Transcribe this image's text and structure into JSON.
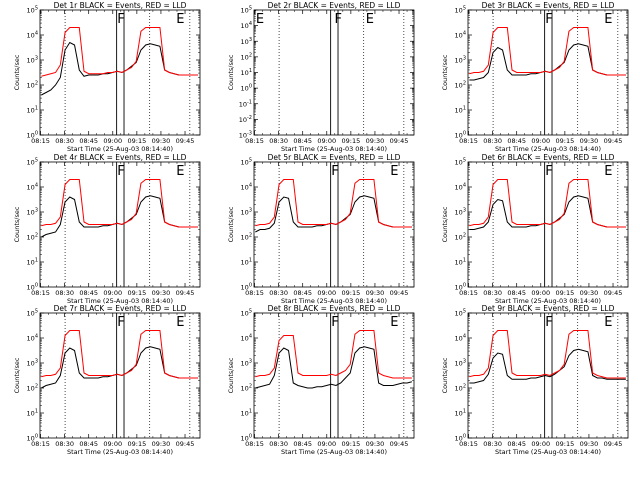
{
  "chart_data": {
    "type": "line",
    "x_ticks": [
      "08:15",
      "08:30",
      "08:45",
      "09:00",
      "09:15",
      "09:30",
      "09:45"
    ],
    "x_range": [
      "08:14:40",
      "09:54:00"
    ],
    "xlabel": "Start Time (25-Aug-03 08:14:40)",
    "ylabel": "Counts/sec",
    "y_scale": "log",
    "y_ticks": [
      "10^0",
      "10^1",
      "10^2",
      "10^3",
      "10^4",
      "10^5"
    ],
    "y_tick_values": [
      0,
      1,
      2,
      3,
      4,
      5
    ],
    "dotted_times_min": [
      15.3,
      68.0,
      93.0
    ],
    "solid_times_min": [
      47.4,
      52.0
    ],
    "panels": [
      {
        "title": "Det 1r BLACK = Events, RED = LLD",
        "ylim_log10": [
          0,
          5
        ],
        "markers": [
          {
            "t": 47.8,
            "label": "F"
          },
          {
            "t": 84.5,
            "label": "E"
          }
        ],
        "series": [
          {
            "name": "BLACK",
            "color": "#000000",
            "values": [
              1.6,
              1.7,
              1.8,
              2.0,
              2.3,
              3.4,
              3.7,
              3.6,
              2.6,
              2.35,
              2.4,
              2.4,
              2.4,
              2.45,
              2.45,
              2.5,
              2.55,
              2.5,
              2.6,
              2.75,
              2.9,
              3.4,
              3.6,
              3.65,
              3.6,
              3.55,
              2.6,
              2.5,
              2.45,
              2.4,
              2.4,
              2.4,
              2.4,
              2.4
            ]
          },
          {
            "name": "RED",
            "color": "#ff0000",
            "values": [
              2.35,
              2.4,
              2.45,
              2.5,
              2.8,
              4.1,
              4.3,
              4.3,
              4.3,
              2.55,
              2.45,
              2.45,
              2.45,
              2.45,
              2.5,
              2.5,
              2.55,
              2.5,
              2.6,
              2.7,
              2.95,
              4.15,
              4.3,
              4.3,
              4.3,
              4.3,
              2.6,
              2.5,
              2.45,
              2.4,
              2.4,
              2.4,
              2.4,
              2.4
            ]
          }
        ]
      },
      {
        "title": "Det 2r BLACK = Events, RED = LLD",
        "ylim_log10": [
          -3,
          5
        ],
        "y_ticks": [
          "10^-3",
          "10^-2",
          "10^-1",
          "10^0",
          "10^1",
          "10^2",
          "10^3",
          "10^4",
          "10^5"
        ],
        "y_tick_values": [
          -3,
          -2,
          -1,
          0,
          1,
          2,
          3,
          4,
          5
        ],
        "markers": [
          {
            "t": 0.8,
            "label": "E"
          },
          {
            "t": 49.8,
            "label": "F"
          },
          {
            "t": 69.3,
            "label": "E"
          }
        ],
        "series": []
      },
      {
        "title": "Det 3r BLACK = Events, RED = LLD",
        "ylim_log10": [
          0,
          5
        ],
        "markers": [
          {
            "t": 47.8,
            "label": "F"
          },
          {
            "t": 84.5,
            "label": "E"
          }
        ],
        "series": [
          {
            "name": "BLACK",
            "color": "#000000",
            "values": [
              2.2,
              2.2,
              2.25,
              2.3,
              2.5,
              3.3,
              3.5,
              3.4,
              2.6,
              2.4,
              2.4,
              2.4,
              2.4,
              2.45,
              2.45,
              2.5,
              2.55,
              2.5,
              2.6,
              2.75,
              2.9,
              3.4,
              3.6,
              3.65,
              3.6,
              3.55,
              2.6,
              2.5,
              2.45,
              2.4,
              2.4,
              2.4,
              2.4,
              2.4
            ]
          },
          {
            "name": "RED",
            "color": "#ff0000",
            "values": [
              2.45,
              2.5,
              2.5,
              2.55,
              2.8,
              4.1,
              4.3,
              4.3,
              4.3,
              2.6,
              2.5,
              2.5,
              2.5,
              2.5,
              2.5,
              2.5,
              2.55,
              2.5,
              2.6,
              2.7,
              2.95,
              4.15,
              4.3,
              4.3,
              4.3,
              4.3,
              2.6,
              2.5,
              2.45,
              2.4,
              2.4,
              2.4,
              2.4,
              2.4
            ]
          }
        ]
      },
      {
        "title": "Det 4r BLACK = Events, RED = LLD",
        "ylim_log10": [
          0,
          5
        ],
        "markers": [
          {
            "t": 47.8,
            "label": "F"
          },
          {
            "t": 84.5,
            "label": "E"
          }
        ],
        "series": [
          {
            "name": "BLACK",
            "color": "#000000",
            "values": [
              2.0,
              2.1,
              2.15,
              2.2,
              2.5,
              3.4,
              3.6,
              3.5,
              2.6,
              2.4,
              2.4,
              2.4,
              2.4,
              2.45,
              2.45,
              2.5,
              2.55,
              2.5,
              2.6,
              2.75,
              2.9,
              3.4,
              3.6,
              3.65,
              3.6,
              3.55,
              2.6,
              2.5,
              2.45,
              2.4,
              2.4,
              2.4,
              2.4,
              2.4
            ]
          },
          {
            "name": "RED",
            "color": "#ff0000",
            "values": [
              2.45,
              2.5,
              2.5,
              2.55,
              2.8,
              4.1,
              4.3,
              4.3,
              4.3,
              2.6,
              2.5,
              2.5,
              2.5,
              2.5,
              2.5,
              2.5,
              2.55,
              2.5,
              2.6,
              2.7,
              2.95,
              4.15,
              4.3,
              4.3,
              4.3,
              4.3,
              2.6,
              2.5,
              2.45,
              2.4,
              2.4,
              2.4,
              2.4,
              2.4
            ]
          }
        ]
      },
      {
        "title": "Det 5r BLACK = Events, RED = LLD",
        "ylim_log10": [
          0,
          5
        ],
        "markers": [
          {
            "t": 47.8,
            "label": "F"
          },
          {
            "t": 84.5,
            "label": "E"
          }
        ],
        "series": [
          {
            "name": "BLACK",
            "color": "#000000",
            "values": [
              2.2,
              2.3,
              2.3,
              2.35,
              2.55,
              3.4,
              3.6,
              3.55,
              2.6,
              2.4,
              2.4,
              2.4,
              2.4,
              2.45,
              2.45,
              2.5,
              2.55,
              2.5,
              2.6,
              2.75,
              2.9,
              3.4,
              3.6,
              3.65,
              3.6,
              3.55,
              2.6,
              2.5,
              2.45,
              2.4,
              2.4,
              2.4,
              2.4,
              2.4
            ]
          },
          {
            "name": "RED",
            "color": "#ff0000",
            "values": [
              2.45,
              2.5,
              2.5,
              2.55,
              2.8,
              4.1,
              4.3,
              4.3,
              4.3,
              2.6,
              2.5,
              2.5,
              2.5,
              2.5,
              2.5,
              2.5,
              2.55,
              2.5,
              2.6,
              2.7,
              2.95,
              4.15,
              4.3,
              4.3,
              4.3,
              4.3,
              2.6,
              2.5,
              2.45,
              2.4,
              2.4,
              2.4,
              2.4,
              2.4
            ]
          }
        ]
      },
      {
        "title": "Det 6r BLACK = Events, RED = LLD",
        "ylim_log10": [
          0,
          5
        ],
        "markers": [
          {
            "t": 47.8,
            "label": "F"
          },
          {
            "t": 84.5,
            "label": "E"
          }
        ],
        "series": [
          {
            "name": "BLACK",
            "color": "#000000",
            "values": [
              2.3,
              2.3,
              2.35,
              2.4,
              2.6,
              3.3,
              3.5,
              3.45,
              2.6,
              2.4,
              2.4,
              2.4,
              2.4,
              2.45,
              2.45,
              2.5,
              2.55,
              2.5,
              2.6,
              2.75,
              2.9,
              3.4,
              3.6,
              3.65,
              3.6,
              3.55,
              2.6,
              2.5,
              2.45,
              2.4,
              2.4,
              2.4,
              2.4,
              2.4
            ]
          },
          {
            "name": "RED",
            "color": "#ff0000",
            "values": [
              2.45,
              2.5,
              2.5,
              2.55,
              2.8,
              4.1,
              4.3,
              4.3,
              4.3,
              2.6,
              2.5,
              2.5,
              2.5,
              2.5,
              2.5,
              2.5,
              2.55,
              2.5,
              2.6,
              2.7,
              2.95,
              4.15,
              4.3,
              4.3,
              4.3,
              4.3,
              2.6,
              2.5,
              2.45,
              2.4,
              2.4,
              2.4,
              2.4,
              2.4
            ]
          }
        ]
      },
      {
        "title": "Det 7r BLACK = Events, RED = LLD",
        "ylim_log10": [
          0,
          5
        ],
        "markers": [
          {
            "t": 47.8,
            "label": "F"
          },
          {
            "t": 84.5,
            "label": "E"
          }
        ],
        "series": [
          {
            "name": "BLACK",
            "color": "#000000",
            "values": [
              2.0,
              2.1,
              2.15,
              2.2,
              2.5,
              3.4,
              3.6,
              3.5,
              2.6,
              2.4,
              2.4,
              2.4,
              2.4,
              2.45,
              2.45,
              2.5,
              2.55,
              2.5,
              2.6,
              2.75,
              2.9,
              3.4,
              3.6,
              3.65,
              3.6,
              3.55,
              2.6,
              2.5,
              2.45,
              2.4,
              2.4,
              2.4,
              2.4,
              2.4
            ]
          },
          {
            "name": "RED",
            "color": "#ff0000",
            "values": [
              2.45,
              2.5,
              2.5,
              2.55,
              2.8,
              4.1,
              4.3,
              4.3,
              4.3,
              2.6,
              2.5,
              2.5,
              2.5,
              2.5,
              2.5,
              2.5,
              2.55,
              2.5,
              2.6,
              2.7,
              2.95,
              4.15,
              4.3,
              4.3,
              4.3,
              4.3,
              2.6,
              2.5,
              2.45,
              2.4,
              2.4,
              2.4,
              2.4,
              2.4
            ]
          }
        ]
      },
      {
        "title": "Det 8r BLACK = Events, RED = LLD",
        "ylim_log10": [
          0,
          5
        ],
        "markers": [
          {
            "t": 47.8,
            "label": "F"
          },
          {
            "t": 84.5,
            "label": "E"
          }
        ],
        "series": [
          {
            "name": "BLACK",
            "color": "#000000",
            "values": [
              2.0,
              2.05,
              2.1,
              2.15,
              2.5,
              3.4,
              3.6,
              3.5,
              2.2,
              2.1,
              2.05,
              2.0,
              2.0,
              2.05,
              2.05,
              2.1,
              2.15,
              2.1,
              2.2,
              2.4,
              2.6,
              3.4,
              3.6,
              3.65,
              3.6,
              3.55,
              2.2,
              2.1,
              2.1,
              2.1,
              2.15,
              2.2,
              2.2,
              2.25
            ]
          },
          {
            "name": "RED",
            "color": "#ff0000",
            "values": [
              2.45,
              2.5,
              2.5,
              2.55,
              2.8,
              3.9,
              4.1,
              4.1,
              4.1,
              2.6,
              2.5,
              2.5,
              2.5,
              2.5,
              2.5,
              2.5,
              2.55,
              2.5,
              2.6,
              2.7,
              2.95,
              4.15,
              4.3,
              4.3,
              4.3,
              4.3,
              2.6,
              2.5,
              2.45,
              2.4,
              2.4,
              2.4,
              2.4,
              2.4
            ]
          }
        ]
      },
      {
        "title": "Det 9r BLACK = Events, RED = LLD",
        "ylim_log10": [
          0,
          5
        ],
        "markers": [
          {
            "t": 47.8,
            "label": "F"
          },
          {
            "t": 84.5,
            "label": "E"
          }
        ],
        "series": [
          {
            "name": "BLACK",
            "color": "#000000",
            "values": [
              2.2,
              2.2,
              2.25,
              2.3,
              2.55,
              3.2,
              3.4,
              3.35,
              2.5,
              2.35,
              2.35,
              2.35,
              2.35,
              2.4,
              2.4,
              2.45,
              2.5,
              2.45,
              2.55,
              2.7,
              2.85,
              3.3,
              3.5,
              3.55,
              3.5,
              3.45,
              2.5,
              2.4,
              2.4,
              2.35,
              2.35,
              2.35,
              2.35,
              2.35
            ]
          },
          {
            "name": "RED",
            "color": "#ff0000",
            "values": [
              2.45,
              2.5,
              2.5,
              2.55,
              2.8,
              4.1,
              4.3,
              4.3,
              4.3,
              2.6,
              2.5,
              2.5,
              2.5,
              2.5,
              2.5,
              2.5,
              2.55,
              2.5,
              2.6,
              2.7,
              2.95,
              4.15,
              4.3,
              4.3,
              4.3,
              4.3,
              2.6,
              2.5,
              2.45,
              2.4,
              2.4,
              2.4,
              2.4,
              2.4
            ]
          }
        ]
      }
    ]
  }
}
